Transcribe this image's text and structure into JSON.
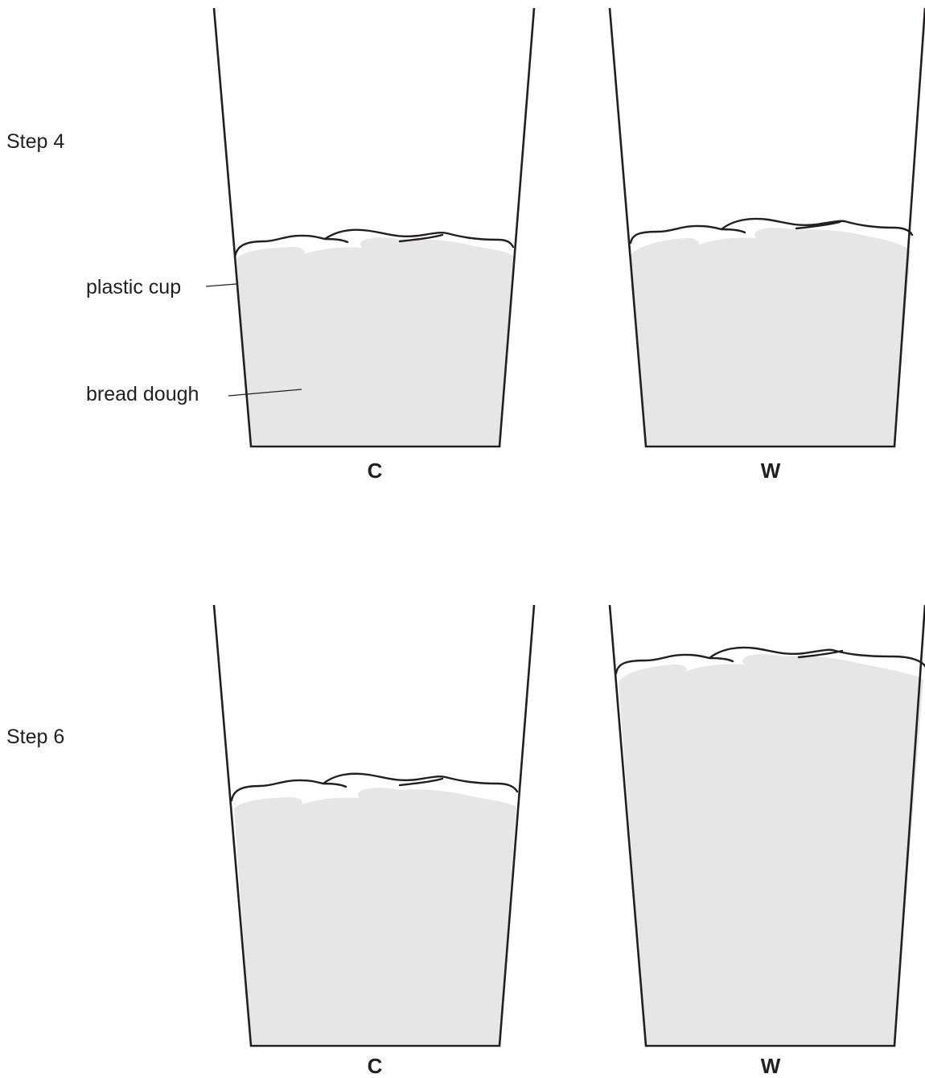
{
  "steps": [
    {
      "label": "Step 4",
      "cups": [
        {
          "id": "C",
          "label": "C"
        },
        {
          "id": "W",
          "label": "W"
        }
      ]
    },
    {
      "label": "Step 6",
      "cups": [
        {
          "id": "C",
          "label": "C"
        },
        {
          "id": "W",
          "label": "W"
        }
      ]
    }
  ],
  "annotations": {
    "plastic_cup": "plastic cup",
    "bread_dough": "bread dough"
  },
  "colors": {
    "line": "#231f20",
    "dough": "#e6e6e6"
  }
}
